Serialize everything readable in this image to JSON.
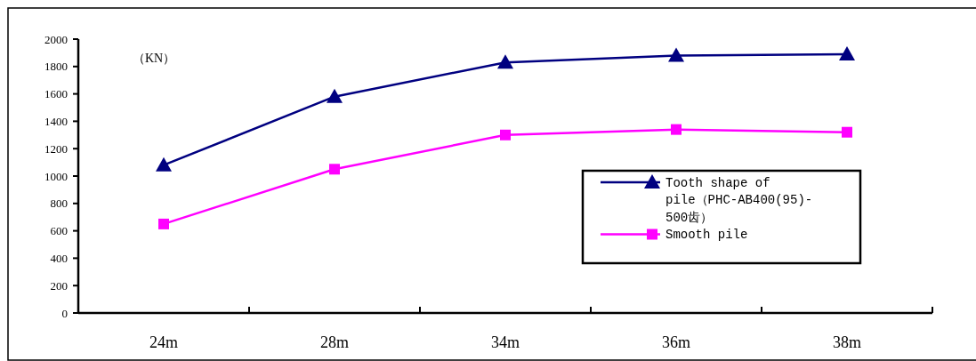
{
  "chart_data": {
    "type": "line",
    "ylabel": "（KN）",
    "categories": [
      "24m",
      "28m",
      "34m",
      "36m",
      "38m"
    ],
    "series": [
      {
        "name": "Tooth shape of pile（PHC-AB400(95)-500齿）",
        "color": "#000080",
        "marker": "triangle",
        "values": [
          1080,
          1580,
          1830,
          1880,
          1890
        ]
      },
      {
        "name": "Smooth pile",
        "color": "#ff00ff",
        "marker": "square",
        "values": [
          650,
          1050,
          1300,
          1340,
          1320
        ]
      }
    ],
    "ylim": [
      0,
      2000
    ],
    "yticks": [
      0,
      200,
      400,
      600,
      800,
      1000,
      1200,
      1400,
      1600,
      1800,
      2000
    ],
    "grid": false,
    "legend": "right"
  }
}
